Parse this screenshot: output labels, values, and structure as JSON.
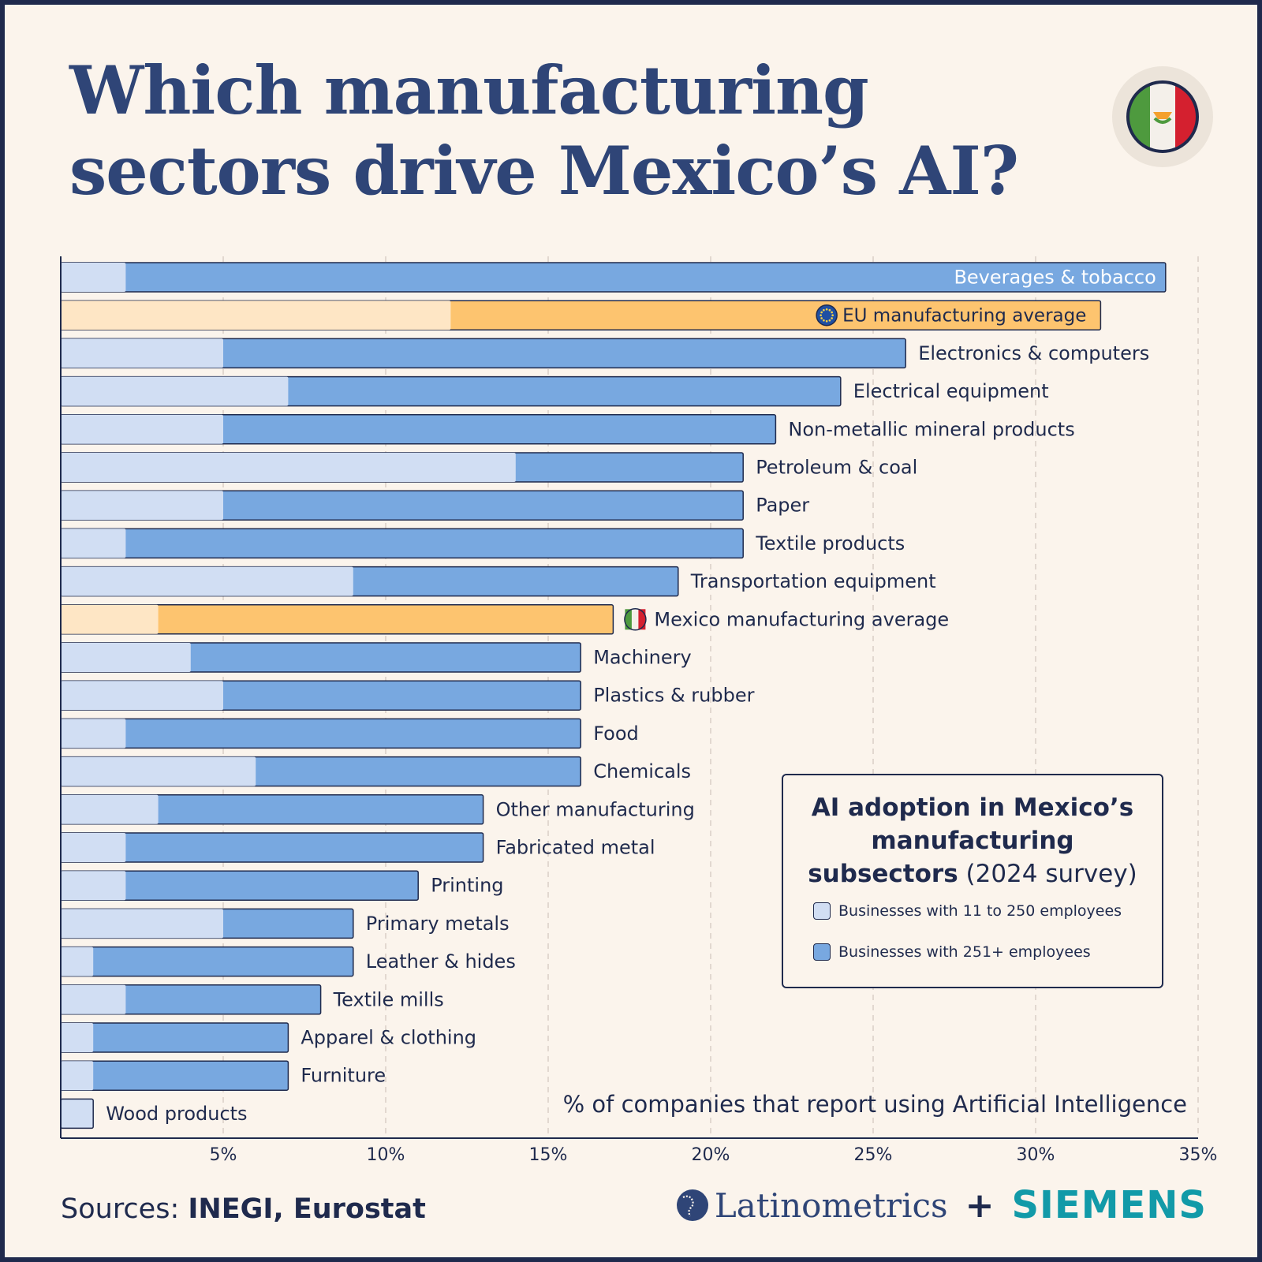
{
  "title_lines": [
    "Which manufacturing",
    "sectors drive Mexico’s AI?"
  ],
  "legend": {
    "title_bold": "AI adoption in Mexico’s manufacturing subsectors",
    "title_rest": "(2024 survey)",
    "items": [
      {
        "label": "Businesses with 11 to 250 employees",
        "color": "#d1def3"
      },
      {
        "label": "Businesses with 251+ employees",
        "color": "#78a8e0"
      }
    ]
  },
  "axis_caption": "% of companies that report using Artificial Intelligence",
  "sources": {
    "prefix": "Sources: ",
    "names": "INEGI, Eurostat"
  },
  "brand": {
    "left": "Latinometrics",
    "plus": "+",
    "right": "SIEMENS"
  },
  "colors": {
    "small_sector": "#d1def3",
    "large_sector": "#78a8e0",
    "small_average": "#fee6c5",
    "large_average": "#fdc46f",
    "text": "#1f2a4d"
  },
  "chart_data": {
    "type": "bar",
    "orientation": "horizontal",
    "xlabel": "% of companies that report using Artificial Intelligence",
    "xlim": [
      0,
      35
    ],
    "xticks": [
      "5%",
      "10%",
      "15%",
      "20%",
      "25%",
      "30%",
      "35%"
    ],
    "grid": "vertical dashed",
    "categories": [
      "Beverages & tobacco",
      "EU manufacturing average",
      "Electronics & computers",
      "Electrical equipment",
      "Non-metallic mineral products",
      "Petroleum & coal",
      "Paper",
      "Textile products",
      "Transportation equipment",
      "Mexico manufacturing average",
      "Machinery",
      "Plastics & rubber",
      "Food",
      "Chemicals",
      "Other manufacturing",
      "Fabricated metal",
      "Printing",
      "Primary metals",
      "Leather & hides",
      "Textile mills",
      "Apparel & clothing",
      "Furniture",
      "Wood products"
    ],
    "highlighted": {
      "EU manufacturing average": "eu",
      "Mexico manufacturing average": "mexico"
    },
    "series": [
      {
        "name": "Businesses with 11 to 250 employees",
        "values": [
          2,
          12,
          5,
          7,
          5,
          14,
          5,
          2,
          9,
          3,
          4,
          5,
          2,
          6,
          3,
          2,
          2,
          5,
          1,
          2,
          1,
          1,
          1
        ]
      },
      {
        "name": "Businesses with 251+ employees",
        "values": [
          34,
          32,
          26,
          24,
          22,
          21,
          21,
          21,
          19,
          17,
          16,
          16,
          16,
          16,
          13,
          13,
          11,
          9,
          9,
          8,
          7,
          7,
          0
        ]
      }
    ]
  }
}
